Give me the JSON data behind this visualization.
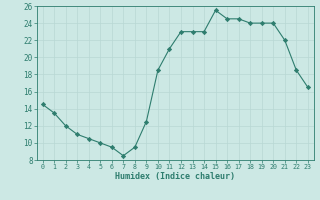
{
  "x": [
    0,
    1,
    2,
    3,
    4,
    5,
    6,
    7,
    8,
    9,
    10,
    11,
    12,
    13,
    14,
    15,
    16,
    17,
    18,
    19,
    20,
    21,
    22,
    23
  ],
  "y": [
    14.5,
    13.5,
    12.0,
    11.0,
    10.5,
    10.0,
    9.5,
    8.5,
    9.5,
    12.5,
    18.5,
    21.0,
    23.0,
    23.0,
    23.0,
    25.5,
    24.5,
    24.5,
    24.0,
    24.0,
    24.0,
    22.0,
    18.5,
    16.5
  ],
  "xlabel": "Humidex (Indice chaleur)",
  "ylim": [
    8,
    26
  ],
  "xlim": [
    -0.5,
    23.5
  ],
  "yticks": [
    8,
    10,
    12,
    14,
    16,
    18,
    20,
    22,
    24,
    26
  ],
  "xticks": [
    0,
    1,
    2,
    3,
    4,
    5,
    6,
    7,
    8,
    9,
    10,
    11,
    12,
    13,
    14,
    15,
    16,
    17,
    18,
    19,
    20,
    21,
    22,
    23
  ],
  "line_color": "#2e7d6e",
  "marker_color": "#2e7d6e",
  "bg_color": "#cce8e4",
  "grid_color": "#b8d8d4",
  "axis_bg": "#cce8e4",
  "tick_color": "#2e7d6e",
  "spine_color": "#2e7d6e"
}
